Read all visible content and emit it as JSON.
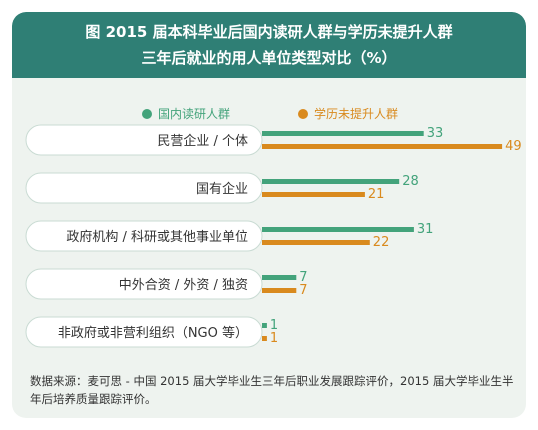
{
  "header": {
    "line1": "图  2015 届本科毕业后国内读研人群与学历未提升人群",
    "line2": "三年后就业的用人单位类型对比（%）"
  },
  "colors": {
    "header_bg": "#2f7f75",
    "card_bg": "#eef3ef",
    "green": "#43a37b",
    "orange": "#d98a1e"
  },
  "chart_data": {
    "type": "bar",
    "orientation": "horizontal",
    "categories": [
      "民营企业 / 个体",
      "国有企业",
      "政府机构 / 科研或其他事业单位",
      "中外合资 / 外资 / 独资",
      "非政府或非营利组织（NGO 等）"
    ],
    "series": [
      {
        "name": "国内读研人群",
        "values": [
          33,
          28,
          31,
          7,
          1
        ]
      },
      {
        "name": "学历未提升人群",
        "values": [
          49,
          21,
          22,
          7,
          1
        ]
      }
    ],
    "legend_position": "top"
  },
  "note": "数据来源：麦可思 - 中国 2015 届大学毕业生三年后职业发展跟踪评价，2015 届大学毕业生半年后培养质量跟踪评价。"
}
